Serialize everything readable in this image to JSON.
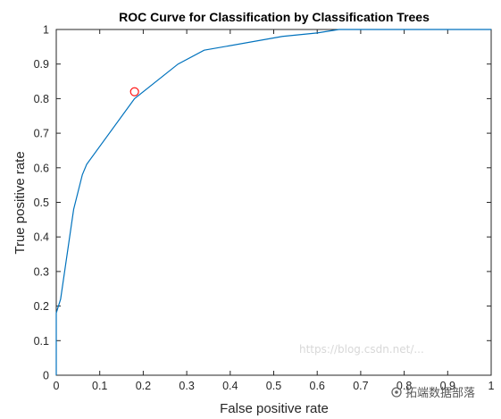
{
  "chart_data": {
    "type": "line",
    "title": "ROC Curve for Classification by Classification Trees",
    "xlabel": "False positive rate",
    "ylabel": "True positive rate",
    "xlim": [
      0,
      1
    ],
    "ylim": [
      0,
      1
    ],
    "xticks": [
      "0",
      "0.1",
      "0.2",
      "0.3",
      "0.4",
      "0.5",
      "0.6",
      "0.7",
      "0.8",
      "0.9",
      "1"
    ],
    "yticks": [
      "0",
      "0.1",
      "0.2",
      "0.3",
      "0.4",
      "0.5",
      "0.6",
      "0.7",
      "0.8",
      "0.9",
      "1"
    ],
    "grid": false,
    "legend": "none",
    "series": [
      {
        "color": "#0072bd",
        "x": [
          0,
          0,
          0.01,
          0.04,
          0.06,
          0.07,
          0.18,
          0.28,
          0.34,
          0.52,
          0.6,
          0.65,
          1.0
        ],
        "y": [
          0,
          0.18,
          0.22,
          0.48,
          0.58,
          0.61,
          0.8,
          0.9,
          0.94,
          0.98,
          0.99,
          1.0,
          1.0
        ]
      }
    ],
    "marker_point": {
      "x": 0.18,
      "y": 0.82,
      "color": "#ff0000",
      "shape": "circle"
    }
  },
  "watermark": {
    "brand": "拓端数据部落",
    "faint_url": "https://blog.csdn.net/..."
  }
}
